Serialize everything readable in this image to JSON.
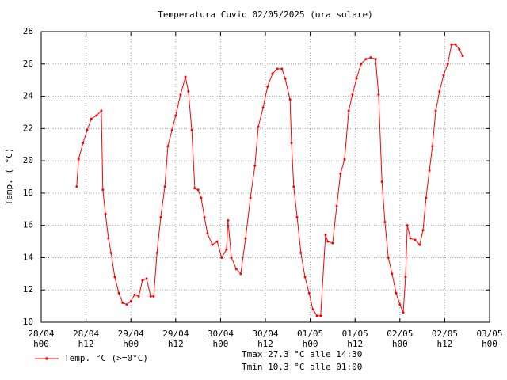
{
  "chart_data": {
    "type": "line",
    "title": "Temperatura Cuvio 02/05/2025 (ora solare)",
    "ylabel": "Temp. ( °C)",
    "annotations": [
      "Tmax 27.3 °C alle 14:30",
      "Tmin 10.3 °C alle 01:00"
    ],
    "xlim": [
      0,
      120
    ],
    "xticks": [
      {
        "value": 0,
        "label": "28/04\nh00"
      },
      {
        "value": 12,
        "label": "28/04\nh12"
      },
      {
        "value": 24,
        "label": "29/04\nh00"
      },
      {
        "value": 36,
        "label": "29/04\nh12"
      },
      {
        "value": 48,
        "label": "30/04\nh00"
      },
      {
        "value": 60,
        "label": "30/04\nh12"
      },
      {
        "value": 72,
        "label": "01/05\nh00"
      },
      {
        "value": 84,
        "label": "01/05\nh12"
      },
      {
        "value": 96,
        "label": "02/05\nh00"
      },
      {
        "value": 108,
        "label": "02/05\nh12"
      },
      {
        "value": 120,
        "label": "03/05\nh00"
      }
    ],
    "ylim": [
      10,
      28
    ],
    "yticks": [
      10,
      12,
      14,
      16,
      18,
      20,
      22,
      24,
      26,
      28
    ],
    "grid": true,
    "legend": "bottom-left",
    "x": [
      9.5,
      10.0,
      11.2,
      12.3,
      13.4,
      14.8,
      16.1,
      16.5,
      17.2,
      18.0,
      18.7,
      19.7,
      20.8,
      21.8,
      22.9,
      24.0,
      25.0,
      26.1,
      27.1,
      28.2,
      29.3,
      30.1,
      31.0,
      32.0,
      33.1,
      33.9,
      35.0,
      36.0,
      37.3,
      38.6,
      39.4,
      40.3,
      41.1,
      42.0,
      42.8,
      43.7,
      44.5,
      45.8,
      47.1,
      48.3,
      49.6,
      50.0,
      50.9,
      52.2,
      53.4,
      54.7,
      56.0,
      57.2,
      58.1,
      59.4,
      60.6,
      61.9,
      63.2,
      64.4,
      65.3,
      66.6,
      67.0,
      67.6,
      68.5,
      69.5,
      70.6,
      71.7,
      72.7,
      73.8,
      74.8,
      76.1,
      76.7,
      78.0,
      79.1,
      80.1,
      81.2,
      82.3,
      83.3,
      84.4,
      85.6,
      86.9,
      88.2,
      89.5,
      90.3,
      91.2,
      92.0,
      92.9,
      93.9,
      95.0,
      96.0,
      96.9,
      97.5,
      98.0,
      98.8,
      100.1,
      101.3,
      102.2,
      103.0,
      103.9,
      104.7,
      105.6,
      106.6,
      107.7,
      108.8,
      109.8,
      110.9,
      111.9,
      112.8
    ],
    "series": [
      {
        "name": "Temp. °C (>=0°C)",
        "color": "#ff0000",
        "values": [
          18.4,
          20.1,
          21.1,
          21.9,
          22.6,
          22.8,
          23.1,
          18.2,
          16.7,
          15.2,
          14.3,
          12.8,
          11.8,
          11.2,
          11.1,
          11.3,
          11.7,
          11.6,
          12.6,
          12.7,
          11.6,
          11.6,
          14.3,
          16.5,
          18.4,
          20.9,
          21.9,
          22.8,
          24.1,
          25.2,
          24.3,
          21.9,
          18.3,
          18.2,
          17.7,
          16.5,
          15.5,
          14.8,
          15.0,
          14.0,
          14.5,
          16.3,
          14.0,
          13.3,
          13.0,
          15.2,
          17.7,
          19.7,
          22.1,
          23.3,
          24.6,
          25.4,
          25.7,
          25.7,
          25.1,
          23.8,
          21.1,
          18.4,
          16.5,
          14.3,
          12.8,
          11.8,
          10.8,
          10.4,
          10.4,
          15.4,
          15.0,
          14.9,
          17.2,
          19.2,
          20.1,
          23.1,
          24.1,
          25.1,
          26.0,
          26.3,
          26.4,
          26.3,
          24.1,
          18.7,
          16.2,
          14.0,
          13.0,
          11.8,
          11.1,
          10.6,
          12.8,
          16.0,
          15.2,
          15.1,
          14.8,
          15.7,
          17.7,
          19.4,
          20.9,
          23.1,
          24.3,
          25.3,
          26.0,
          27.2,
          27.2,
          26.9,
          26.5
        ]
      }
    ]
  }
}
